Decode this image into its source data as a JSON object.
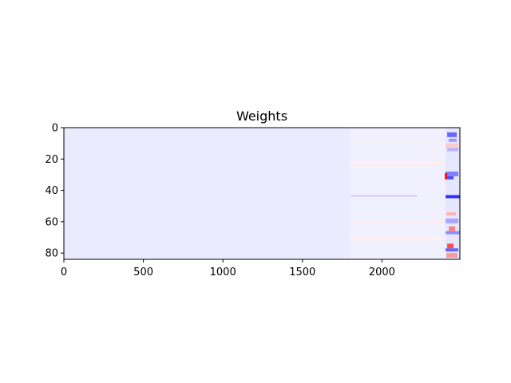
{
  "chart_data": {
    "type": "heatmap",
    "title": "Weights",
    "xlabel": "",
    "ylabel": "",
    "colormap": "bwr",
    "xlim": [
      0,
      2490
    ],
    "ylim": [
      84,
      0
    ],
    "grid": false,
    "x_ticks": [
      {
        "value": 0,
        "label": "0"
      },
      {
        "value": 500,
        "label": "500"
      },
      {
        "value": 1000,
        "label": "1000"
      },
      {
        "value": 1500,
        "label": "1500"
      },
      {
        "value": 2000,
        "label": "2000"
      }
    ],
    "y_ticks": [
      {
        "value": 0,
        "label": "0"
      },
      {
        "value": 20,
        "label": "20"
      },
      {
        "value": 40,
        "label": "40"
      },
      {
        "value": 60,
        "label": "60"
      },
      {
        "value": 80,
        "label": "80"
      }
    ],
    "colors": {
      "background_cell": "#e9e9ff",
      "negative_strong": "#2a2aff",
      "positive_strong": "#ff3a3a",
      "white": "#ffffff",
      "dark": "#5a0010"
    },
    "rows": 84,
    "bands": [
      {
        "x0": 0,
        "x1": 1800,
        "value": -0.08
      },
      {
        "x0": 1800,
        "x1": 2400,
        "value": -0.06
      },
      {
        "x0": 2400,
        "x1": 2490,
        "value": -0.1
      }
    ],
    "features": [
      {
        "x": 2410,
        "y": 3,
        "w": 60,
        "h": 3,
        "value": -0.6
      },
      {
        "x": 2420,
        "y": 7,
        "w": 50,
        "h": 2,
        "value": -0.4
      },
      {
        "x": 2400,
        "y": 10,
        "w": 80,
        "h": 3,
        "value": 0.2
      },
      {
        "x": 2410,
        "y": 13,
        "w": 70,
        "h": 2,
        "value": -0.3
      },
      {
        "x": 2400,
        "y": 28,
        "w": 80,
        "h": 3,
        "value": -0.5
      },
      {
        "x": 2395,
        "y": 29,
        "w": 15,
        "h": 4,
        "value": 0.95
      },
      {
        "x": 2410,
        "y": 31,
        "w": 40,
        "h": 2,
        "value": -0.7
      },
      {
        "x": 2400,
        "y": 43,
        "w": 90,
        "h": 2,
        "value": -0.8
      },
      {
        "x": 1800,
        "y": 43,
        "w": 420,
        "h": 1,
        "value": -0.2
      },
      {
        "x": 2405,
        "y": 54,
        "w": 60,
        "h": 2,
        "value": 0.3
      },
      {
        "x": 2400,
        "y": 58,
        "w": 80,
        "h": 3,
        "value": -0.35
      },
      {
        "x": 2420,
        "y": 63,
        "w": 40,
        "h": 3,
        "value": 0.5
      },
      {
        "x": 2400,
        "y": 66,
        "w": 90,
        "h": 2,
        "value": -0.45
      },
      {
        "x": 2410,
        "y": 74,
        "w": 40,
        "h": 3,
        "value": 0.7
      },
      {
        "x": 2400,
        "y": 77,
        "w": 80,
        "h": 2,
        "value": -0.6
      },
      {
        "x": 2405,
        "y": 80,
        "w": 70,
        "h": 3,
        "value": 0.4
      },
      {
        "x": 1800,
        "y": 8,
        "w": 600,
        "h": 1,
        "value": 0.08
      },
      {
        "x": 1800,
        "y": 22,
        "w": 600,
        "h": 2,
        "value": 0.06
      },
      {
        "x": 1800,
        "y": 60,
        "w": 600,
        "h": 1,
        "value": 0.07
      },
      {
        "x": 1800,
        "y": 70,
        "w": 600,
        "h": 2,
        "value": 0.06
      }
    ]
  }
}
